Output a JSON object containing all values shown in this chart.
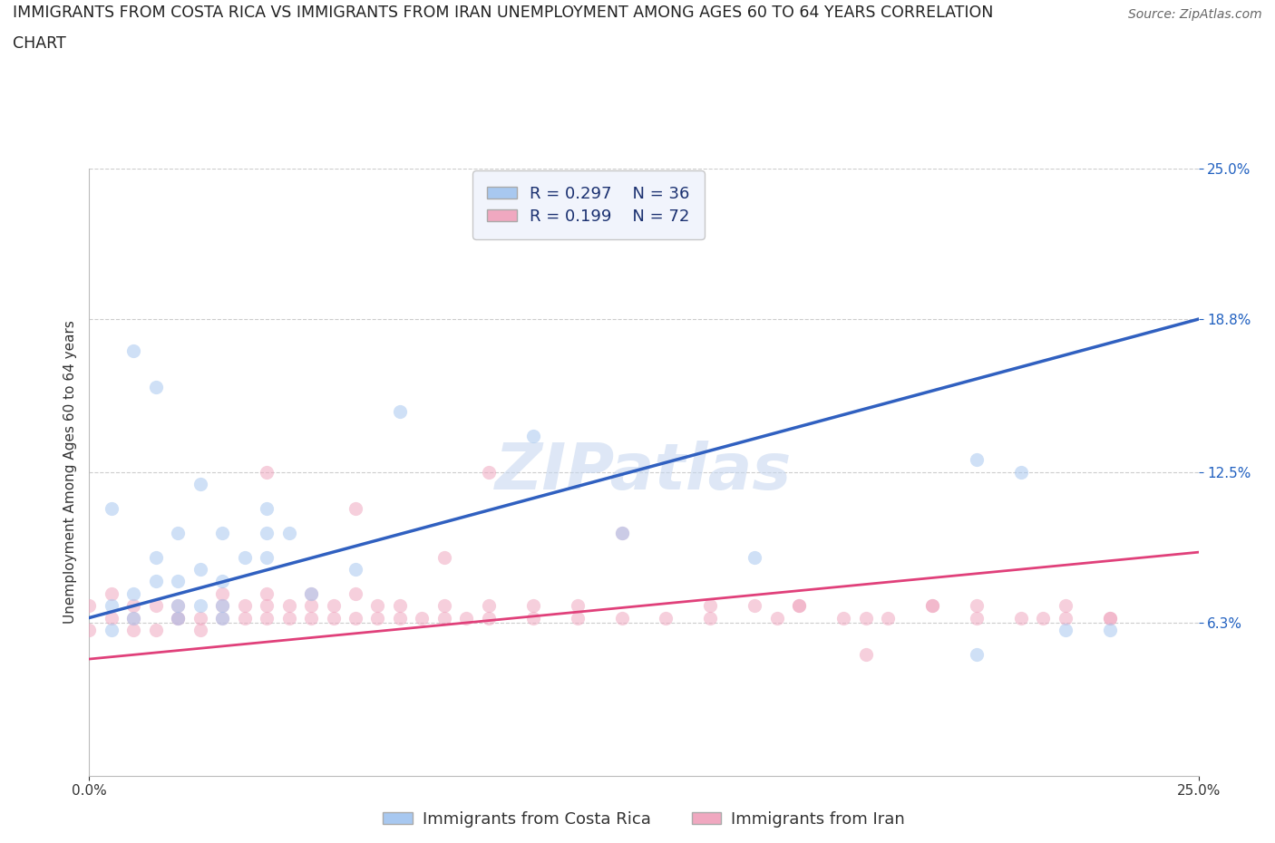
{
  "title_line1": "IMMIGRANTS FROM COSTA RICA VS IMMIGRANTS FROM IRAN UNEMPLOYMENT AMONG AGES 60 TO 64 YEARS CORRELATION",
  "title_line2": "CHART",
  "source_text": "Source: ZipAtlas.com",
  "ylabel": "Unemployment Among Ages 60 to 64 years",
  "xlim": [
    0.0,
    0.25
  ],
  "ylim": [
    0.0,
    0.25
  ],
  "xtick_positions": [
    0.0,
    0.25
  ],
  "xtick_labels": [
    "0.0%",
    "25.0%"
  ],
  "ytick_values": [
    0.063,
    0.125,
    0.188,
    0.25
  ],
  "ytick_labels": [
    "6.3%",
    "12.5%",
    "18.8%",
    "25.0%"
  ],
  "watermark": "ZIPatlas",
  "costa_rica_color": "#a8c8f0",
  "iran_color": "#f0a8c0",
  "costa_rica_line_color": "#3060c0",
  "iran_line_color": "#e0407a",
  "legend_box_color": "#eef2fc",
  "R_costa_rica": 0.297,
  "N_costa_rica": 36,
  "R_iran": 0.199,
  "N_iran": 72,
  "costa_rica_scatter_x": [
    0.005,
    0.005,
    0.01,
    0.01,
    0.015,
    0.015,
    0.02,
    0.02,
    0.02,
    0.025,
    0.025,
    0.03,
    0.03,
    0.03,
    0.035,
    0.04,
    0.04,
    0.04,
    0.045,
    0.05,
    0.005,
    0.01,
    0.015,
    0.02,
    0.025,
    0.03,
    0.06,
    0.07,
    0.1,
    0.12,
    0.15,
    0.2,
    0.22,
    0.23,
    0.21,
    0.2
  ],
  "costa_rica_scatter_y": [
    0.07,
    0.06,
    0.075,
    0.065,
    0.08,
    0.09,
    0.08,
    0.07,
    0.065,
    0.07,
    0.085,
    0.07,
    0.08,
    0.065,
    0.09,
    0.1,
    0.09,
    0.11,
    0.1,
    0.075,
    0.11,
    0.175,
    0.16,
    0.1,
    0.12,
    0.1,
    0.085,
    0.15,
    0.14,
    0.1,
    0.09,
    0.13,
    0.06,
    0.06,
    0.125,
    0.05
  ],
  "iran_scatter_x": [
    0.0,
    0.0,
    0.005,
    0.005,
    0.01,
    0.01,
    0.01,
    0.015,
    0.015,
    0.02,
    0.02,
    0.02,
    0.025,
    0.025,
    0.03,
    0.03,
    0.03,
    0.035,
    0.035,
    0.04,
    0.04,
    0.04,
    0.045,
    0.045,
    0.05,
    0.05,
    0.05,
    0.055,
    0.055,
    0.06,
    0.06,
    0.065,
    0.065,
    0.07,
    0.07,
    0.075,
    0.08,
    0.08,
    0.085,
    0.09,
    0.09,
    0.1,
    0.1,
    0.11,
    0.11,
    0.12,
    0.13,
    0.14,
    0.14,
    0.15,
    0.155,
    0.16,
    0.17,
    0.175,
    0.18,
    0.19,
    0.2,
    0.2,
    0.21,
    0.215,
    0.22,
    0.22,
    0.23,
    0.23,
    0.16,
    0.19,
    0.06,
    0.12,
    0.08,
    0.175,
    0.09,
    0.04
  ],
  "iran_scatter_y": [
    0.06,
    0.07,
    0.065,
    0.075,
    0.06,
    0.065,
    0.07,
    0.06,
    0.07,
    0.065,
    0.07,
    0.065,
    0.065,
    0.06,
    0.065,
    0.07,
    0.075,
    0.065,
    0.07,
    0.07,
    0.065,
    0.075,
    0.07,
    0.065,
    0.065,
    0.07,
    0.075,
    0.065,
    0.07,
    0.065,
    0.075,
    0.065,
    0.07,
    0.065,
    0.07,
    0.065,
    0.065,
    0.07,
    0.065,
    0.065,
    0.07,
    0.065,
    0.07,
    0.065,
    0.07,
    0.065,
    0.065,
    0.065,
    0.07,
    0.07,
    0.065,
    0.07,
    0.065,
    0.065,
    0.065,
    0.07,
    0.065,
    0.07,
    0.065,
    0.065,
    0.065,
    0.07,
    0.065,
    0.065,
    0.07,
    0.07,
    0.11,
    0.1,
    0.09,
    0.05,
    0.125,
    0.125
  ],
  "costa_rica_line_x": [
    0.0,
    0.25
  ],
  "costa_rica_line_y": [
    0.065,
    0.188
  ],
  "iran_line_x": [
    0.0,
    0.25
  ],
  "iran_line_y": [
    0.048,
    0.092
  ],
  "background_color": "#ffffff",
  "grid_color": "#cccccc",
  "title_fontsize": 12.5,
  "source_fontsize": 10,
  "label_fontsize": 11,
  "tick_fontsize": 11,
  "legend_fontsize": 13,
  "watermark_fontsize": 52,
  "watermark_color": "#c8d8f0",
  "scatter_size": 120,
  "scatter_alpha": 0.55,
  "legend_text_color_dark": "#1a3070",
  "legend_val_color": "#2060c0",
  "bottom_legend_label1": "Immigrants from Costa Rica",
  "bottom_legend_label2": "Immigrants from Iran"
}
